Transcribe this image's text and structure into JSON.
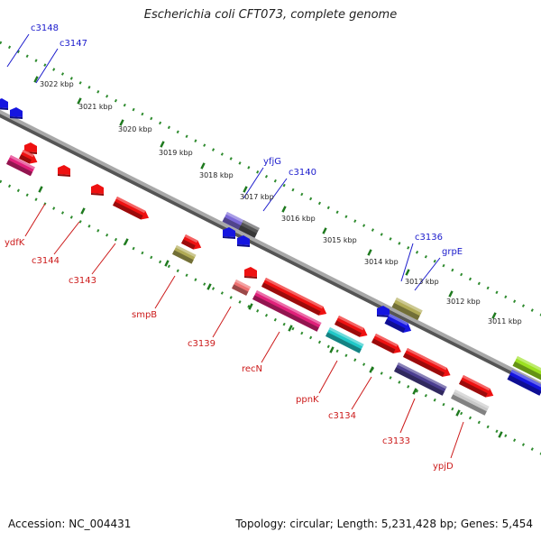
{
  "title": "Escherichia coli CFT073, complete genome",
  "footer": {
    "accession": "Accession: NC_004431",
    "summary": "Topology: circular; Length: 5,231,428 bp; Genes: 5,454"
  },
  "colors": {
    "backbone": "#8c8c8c",
    "ticks": "#2e8b2e",
    "forward_label": "#1a1acc",
    "reverse_label": "#cc1a1a"
  },
  "kbp_labels": [
    "3022 kbp",
    "3021 kbp",
    "3020 kbp",
    "3019 kbp",
    "3018 kbp",
    "3017 kbp",
    "3016 kbp",
    "3015 kbp",
    "3014 kbp",
    "3013 kbp",
    "3012 kbp",
    "3011 kbp"
  ],
  "forward_genes": [
    "c3148",
    "c3147",
    "yfjG",
    "c3140",
    "c3136",
    "grpE"
  ],
  "reverse_genes": [
    "ydfK",
    "c3144",
    "c3143",
    "smpB",
    "c3139",
    "recN",
    "ppnK",
    "c3134",
    "c3133",
    "ypjD"
  ]
}
